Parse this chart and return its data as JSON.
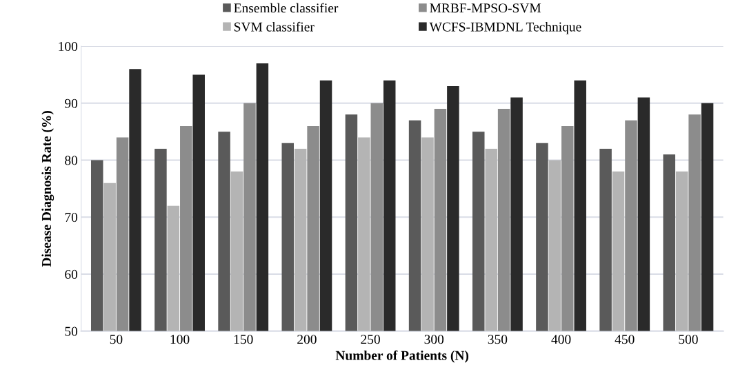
{
  "chart_data": {
    "type": "bar",
    "xlabel": "Number of Patients (N)",
    "ylabel": "Disease Diagnosis Rate (%)",
    "categories": [
      "50",
      "100",
      "150",
      "200",
      "250",
      "300",
      "350",
      "400",
      "450",
      "500"
    ],
    "series": [
      {
        "name": "Ensemble classifier",
        "color": "#5a5a5a",
        "values": [
          80,
          82,
          85,
          83,
          88,
          87,
          85,
          83,
          82,
          81
        ]
      },
      {
        "name": "SVM classifier",
        "color": "#b4b4b4",
        "values": [
          76,
          72,
          78,
          82,
          84,
          84,
          82,
          80,
          78,
          78
        ]
      },
      {
        "name": "MRBF-MPSO-SVM",
        "color": "#8c8c8c",
        "values": [
          84,
          86,
          90,
          86,
          90,
          89,
          89,
          86,
          87,
          88
        ]
      },
      {
        "name": "WCFS-IBMDNL Technique",
        "color": "#2a2a2a",
        "values": [
          96,
          95,
          97,
          94,
          94,
          93,
          91,
          94,
          91,
          90
        ]
      }
    ],
    "ylim": [
      50,
      100
    ],
    "yticks": [
      50,
      60,
      70,
      80,
      90,
      100
    ],
    "grid": "y",
    "legend": "top"
  }
}
